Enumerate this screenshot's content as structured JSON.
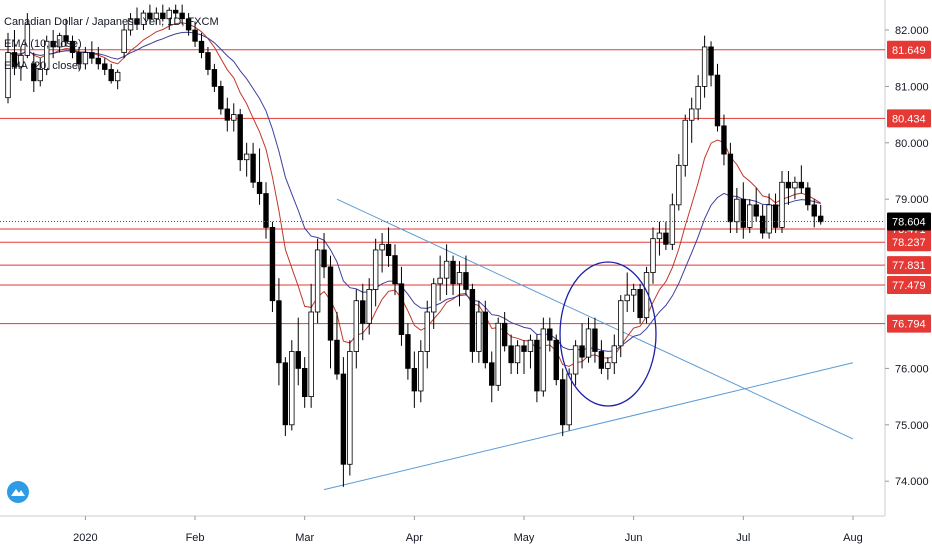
{
  "chart_data": {
    "type": "candlestick",
    "title": "Canadian Dollar / Japanese Yen, 1D, FXCM",
    "indicators": [
      {
        "name": "EMA (10, close)",
        "color": "#c0392b"
      },
      {
        "name": "EMA (20, close)",
        "color": "#3f3f9c"
      }
    ],
    "x_labels": [
      "2020",
      "Feb",
      "Mar",
      "Apr",
      "May",
      "Jun",
      "Jul",
      "Aug"
    ],
    "y_ticks": [
      "82.000",
      "81.000",
      "80.000",
      "79.000",
      "76.000",
      "75.000",
      "74.000"
    ],
    "ylim": [
      73.45,
      82.45
    ],
    "current_price": "78.604",
    "horizontal_levels": [
      "81.649",
      "80.434",
      "78.471",
      "78.237",
      "77.831",
      "77.479",
      "76.794"
    ],
    "level_color": "#e53935",
    "trendline_color": "#5b9bd5",
    "circle_color": "#1b1fa8",
    "candles": [
      {
        "o": 80.8,
        "h": 81.95,
        "l": 80.7,
        "c": 81.6
      },
      {
        "o": 81.6,
        "h": 82.0,
        "l": 81.2,
        "c": 81.35
      },
      {
        "o": 81.35,
        "h": 81.7,
        "l": 81.1,
        "c": 81.55
      },
      {
        "o": 81.55,
        "h": 82.3,
        "l": 81.5,
        "c": 82.1
      },
      {
        "o": 81.4,
        "h": 81.6,
        "l": 80.9,
        "c": 81.1
      },
      {
        "o": 81.1,
        "h": 81.5,
        "l": 81.0,
        "c": 81.3
      },
      {
        "o": 81.3,
        "h": 81.9,
        "l": 81.2,
        "c": 81.8
      },
      {
        "o": 81.8,
        "h": 82.0,
        "l": 81.5,
        "c": 81.7
      },
      {
        "o": 81.7,
        "h": 81.95,
        "l": 81.6,
        "c": 81.9
      },
      {
        "o": 81.9,
        "h": 82.2,
        "l": 81.7,
        "c": 81.8
      },
      {
        "o": 81.8,
        "h": 81.9,
        "l": 81.5,
        "c": 81.6
      },
      {
        "o": 81.6,
        "h": 81.7,
        "l": 81.3,
        "c": 81.4
      },
      {
        "o": 81.4,
        "h": 81.7,
        "l": 81.3,
        "c": 81.6
      },
      {
        "o": 81.6,
        "h": 81.8,
        "l": 81.4,
        "c": 81.5
      },
      {
        "o": 81.5,
        "h": 81.7,
        "l": 81.3,
        "c": 81.4
      },
      {
        "o": 81.4,
        "h": 81.5,
        "l": 81.2,
        "c": 81.3
      },
      {
        "o": 81.3,
        "h": 81.4,
        "l": 81.05,
        "c": 81.1
      },
      {
        "o": 81.1,
        "h": 81.3,
        "l": 80.95,
        "c": 81.25
      },
      {
        "o": 81.6,
        "h": 82.1,
        "l": 81.5,
        "c": 82.0
      },
      {
        "o": 82.0,
        "h": 82.3,
        "l": 81.9,
        "c": 82.2
      },
      {
        "o": 82.2,
        "h": 82.4,
        "l": 82.0,
        "c": 82.1
      },
      {
        "o": 82.1,
        "h": 82.35,
        "l": 82.0,
        "c": 82.3
      },
      {
        "o": 82.3,
        "h": 82.45,
        "l": 82.1,
        "c": 82.2
      },
      {
        "o": 82.2,
        "h": 82.4,
        "l": 82.1,
        "c": 82.3
      },
      {
        "o": 82.3,
        "h": 82.45,
        "l": 82.15,
        "c": 82.2
      },
      {
        "o": 82.2,
        "h": 82.4,
        "l": 82.0,
        "c": 82.35
      },
      {
        "o": 82.35,
        "h": 82.45,
        "l": 82.2,
        "c": 82.3
      },
      {
        "o": 82.3,
        "h": 82.45,
        "l": 82.1,
        "c": 82.2
      },
      {
        "o": 82.2,
        "h": 82.3,
        "l": 81.9,
        "c": 82.0
      },
      {
        "o": 82.0,
        "h": 82.15,
        "l": 81.7,
        "c": 81.8
      },
      {
        "o": 81.8,
        "h": 81.95,
        "l": 81.5,
        "c": 81.6
      },
      {
        "o": 81.6,
        "h": 81.7,
        "l": 81.2,
        "c": 81.3
      },
      {
        "o": 81.3,
        "h": 81.4,
        "l": 80.9,
        "c": 81.0
      },
      {
        "o": 81.0,
        "h": 81.1,
        "l": 80.5,
        "c": 80.6
      },
      {
        "o": 80.6,
        "h": 80.8,
        "l": 80.2,
        "c": 80.4
      },
      {
        "o": 80.4,
        "h": 80.7,
        "l": 80.2,
        "c": 80.5
      },
      {
        "o": 80.5,
        "h": 80.6,
        "l": 79.5,
        "c": 79.7
      },
      {
        "o": 79.7,
        "h": 80.0,
        "l": 79.4,
        "c": 79.8
      },
      {
        "o": 79.8,
        "h": 80.0,
        "l": 79.2,
        "c": 79.3
      },
      {
        "o": 79.3,
        "h": 79.9,
        "l": 78.9,
        "c": 79.1
      },
      {
        "o": 79.1,
        "h": 79.3,
        "l": 78.3,
        "c": 78.5
      },
      {
        "o": 78.5,
        "h": 78.6,
        "l": 77.0,
        "c": 77.2
      },
      {
        "o": 77.2,
        "h": 77.6,
        "l": 75.7,
        "c": 76.1
      },
      {
        "o": 76.1,
        "h": 76.2,
        "l": 74.8,
        "c": 75.0
      },
      {
        "o": 75.0,
        "h": 76.5,
        "l": 74.9,
        "c": 76.3
      },
      {
        "o": 76.3,
        "h": 76.9,
        "l": 75.7,
        "c": 76.0
      },
      {
        "o": 76.0,
        "h": 76.2,
        "l": 75.3,
        "c": 75.5
      },
      {
        "o": 75.5,
        "h": 77.5,
        "l": 75.3,
        "c": 77.0
      },
      {
        "o": 77.0,
        "h": 78.3,
        "l": 76.8,
        "c": 78.1
      },
      {
        "o": 78.1,
        "h": 78.4,
        "l": 77.6,
        "c": 77.8
      },
      {
        "o": 77.8,
        "h": 78.0,
        "l": 76.0,
        "c": 76.5
      },
      {
        "o": 76.5,
        "h": 77.0,
        "l": 75.8,
        "c": 75.9
      },
      {
        "o": 75.9,
        "h": 76.2,
        "l": 73.9,
        "c": 74.3
      },
      {
        "o": 74.3,
        "h": 76.5,
        "l": 74.1,
        "c": 76.3
      },
      {
        "o": 76.3,
        "h": 77.4,
        "l": 76.0,
        "c": 77.2
      },
      {
        "o": 77.2,
        "h": 77.5,
        "l": 76.5,
        "c": 76.8
      },
      {
        "o": 76.8,
        "h": 77.6,
        "l": 76.6,
        "c": 77.4
      },
      {
        "o": 77.4,
        "h": 78.3,
        "l": 77.1,
        "c": 78.1
      },
      {
        "o": 78.1,
        "h": 78.4,
        "l": 77.7,
        "c": 78.2
      },
      {
        "o": 78.2,
        "h": 78.5,
        "l": 77.8,
        "c": 78.0
      },
      {
        "o": 78.0,
        "h": 78.2,
        "l": 77.3,
        "c": 77.5
      },
      {
        "o": 77.5,
        "h": 77.8,
        "l": 76.4,
        "c": 76.6
      },
      {
        "o": 76.6,
        "h": 76.8,
        "l": 75.8,
        "c": 76.0
      },
      {
        "o": 76.0,
        "h": 76.3,
        "l": 75.3,
        "c": 75.6
      },
      {
        "o": 75.6,
        "h": 76.5,
        "l": 75.4,
        "c": 76.3
      },
      {
        "o": 76.3,
        "h": 77.2,
        "l": 76.0,
        "c": 77.0
      },
      {
        "o": 77.0,
        "h": 77.6,
        "l": 76.7,
        "c": 77.5
      },
      {
        "o": 77.5,
        "h": 78.0,
        "l": 77.2,
        "c": 77.6
      },
      {
        "o": 77.6,
        "h": 78.2,
        "l": 77.3,
        "c": 77.9
      },
      {
        "o": 77.9,
        "h": 78.0,
        "l": 77.3,
        "c": 77.5
      },
      {
        "o": 77.5,
        "h": 77.9,
        "l": 77.1,
        "c": 77.7
      },
      {
        "o": 77.7,
        "h": 78.0,
        "l": 77.3,
        "c": 77.4
      },
      {
        "o": 77.4,
        "h": 77.5,
        "l": 76.1,
        "c": 76.3
      },
      {
        "o": 76.3,
        "h": 77.2,
        "l": 76.1,
        "c": 77.0
      },
      {
        "o": 77.0,
        "h": 77.2,
        "l": 76.0,
        "c": 76.1
      },
      {
        "o": 76.1,
        "h": 76.3,
        "l": 75.4,
        "c": 75.7
      },
      {
        "o": 75.7,
        "h": 76.9,
        "l": 75.6,
        "c": 76.8
      },
      {
        "o": 76.8,
        "h": 77.0,
        "l": 76.3,
        "c": 76.4
      },
      {
        "o": 76.4,
        "h": 76.6,
        "l": 75.9,
        "c": 76.1
      },
      {
        "o": 76.1,
        "h": 76.5,
        "l": 75.9,
        "c": 76.4
      },
      {
        "o": 76.4,
        "h": 76.5,
        "l": 75.9,
        "c": 76.3
      },
      {
        "o": 76.3,
        "h": 76.6,
        "l": 76.0,
        "c": 76.5
      },
      {
        "o": 76.5,
        "h": 76.6,
        "l": 75.4,
        "c": 75.6
      },
      {
        "o": 75.6,
        "h": 76.9,
        "l": 75.5,
        "c": 76.7
      },
      {
        "o": 76.7,
        "h": 76.9,
        "l": 76.3,
        "c": 76.5
      },
      {
        "o": 76.5,
        "h": 76.6,
        "l": 75.7,
        "c": 75.8
      },
      {
        "o": 75.8,
        "h": 76.0,
        "l": 74.8,
        "c": 75.0
      },
      {
        "o": 75.0,
        "h": 76.0,
        "l": 74.9,
        "c": 75.9
      },
      {
        "o": 75.9,
        "h": 76.5,
        "l": 75.7,
        "c": 76.4
      },
      {
        "o": 76.4,
        "h": 76.8,
        "l": 76.0,
        "c": 76.2
      },
      {
        "o": 76.2,
        "h": 76.9,
        "l": 76.1,
        "c": 76.7
      },
      {
        "o": 76.7,
        "h": 76.9,
        "l": 76.1,
        "c": 76.3
      },
      {
        "o": 76.3,
        "h": 76.5,
        "l": 75.9,
        "c": 76.0
      },
      {
        "o": 76.0,
        "h": 76.2,
        "l": 75.8,
        "c": 76.1
      },
      {
        "o": 76.1,
        "h": 76.6,
        "l": 75.9,
        "c": 76.4
      },
      {
        "o": 76.4,
        "h": 77.3,
        "l": 76.2,
        "c": 77.2
      },
      {
        "o": 77.2,
        "h": 77.7,
        "l": 77.0,
        "c": 77.3
      },
      {
        "o": 77.3,
        "h": 77.5,
        "l": 77.0,
        "c": 77.4
      },
      {
        "o": 77.4,
        "h": 77.5,
        "l": 76.8,
        "c": 76.9
      },
      {
        "o": 76.9,
        "h": 77.8,
        "l": 76.8,
        "c": 77.7
      },
      {
        "o": 77.7,
        "h": 78.5,
        "l": 77.5,
        "c": 78.3
      },
      {
        "o": 78.3,
        "h": 78.6,
        "l": 78.0,
        "c": 78.4
      },
      {
        "o": 78.4,
        "h": 78.6,
        "l": 78.1,
        "c": 78.2
      },
      {
        "o": 78.2,
        "h": 79.1,
        "l": 78.1,
        "c": 78.9
      },
      {
        "o": 78.9,
        "h": 79.8,
        "l": 78.8,
        "c": 79.6
      },
      {
        "o": 79.6,
        "h": 80.5,
        "l": 79.4,
        "c": 80.4
      },
      {
        "o": 80.4,
        "h": 80.8,
        "l": 80.0,
        "c": 80.6
      },
      {
        "o": 80.6,
        "h": 81.2,
        "l": 80.4,
        "c": 81.0
      },
      {
        "o": 81.0,
        "h": 81.9,
        "l": 80.8,
        "c": 81.7
      },
      {
        "o": 81.7,
        "h": 81.8,
        "l": 81.0,
        "c": 81.2
      },
      {
        "o": 81.2,
        "h": 81.4,
        "l": 80.2,
        "c": 80.3
      },
      {
        "o": 80.3,
        "h": 80.5,
        "l": 79.6,
        "c": 79.8
      },
      {
        "o": 79.8,
        "h": 80.0,
        "l": 78.4,
        "c": 78.6
      },
      {
        "o": 78.6,
        "h": 79.2,
        "l": 78.4,
        "c": 79.0
      },
      {
        "o": 79.0,
        "h": 79.3,
        "l": 78.3,
        "c": 78.5
      },
      {
        "o": 78.5,
        "h": 79.0,
        "l": 78.4,
        "c": 78.9
      },
      {
        "o": 78.9,
        "h": 79.2,
        "l": 78.6,
        "c": 78.7
      },
      {
        "o": 78.7,
        "h": 78.9,
        "l": 78.3,
        "c": 78.4
      },
      {
        "o": 78.4,
        "h": 79.1,
        "l": 78.3,
        "c": 78.9
      },
      {
        "o": 78.9,
        "h": 79.1,
        "l": 78.4,
        "c": 78.5
      },
      {
        "o": 78.5,
        "h": 79.5,
        "l": 78.4,
        "c": 79.3
      },
      {
        "o": 79.3,
        "h": 79.5,
        "l": 78.9,
        "c": 79.2
      },
      {
        "o": 79.2,
        "h": 79.4,
        "l": 79.0,
        "c": 79.3
      },
      {
        "o": 79.3,
        "h": 79.6,
        "l": 79.1,
        "c": 79.2
      },
      {
        "o": 79.2,
        "h": 79.3,
        "l": 78.8,
        "c": 78.9
      },
      {
        "o": 78.9,
        "h": 79.0,
        "l": 78.5,
        "c": 78.7
      },
      {
        "o": 78.7,
        "h": 78.9,
        "l": 78.55,
        "c": 78.6
      }
    ]
  },
  "branding": {
    "logo_icon": "tradingview-cloud-icon"
  }
}
